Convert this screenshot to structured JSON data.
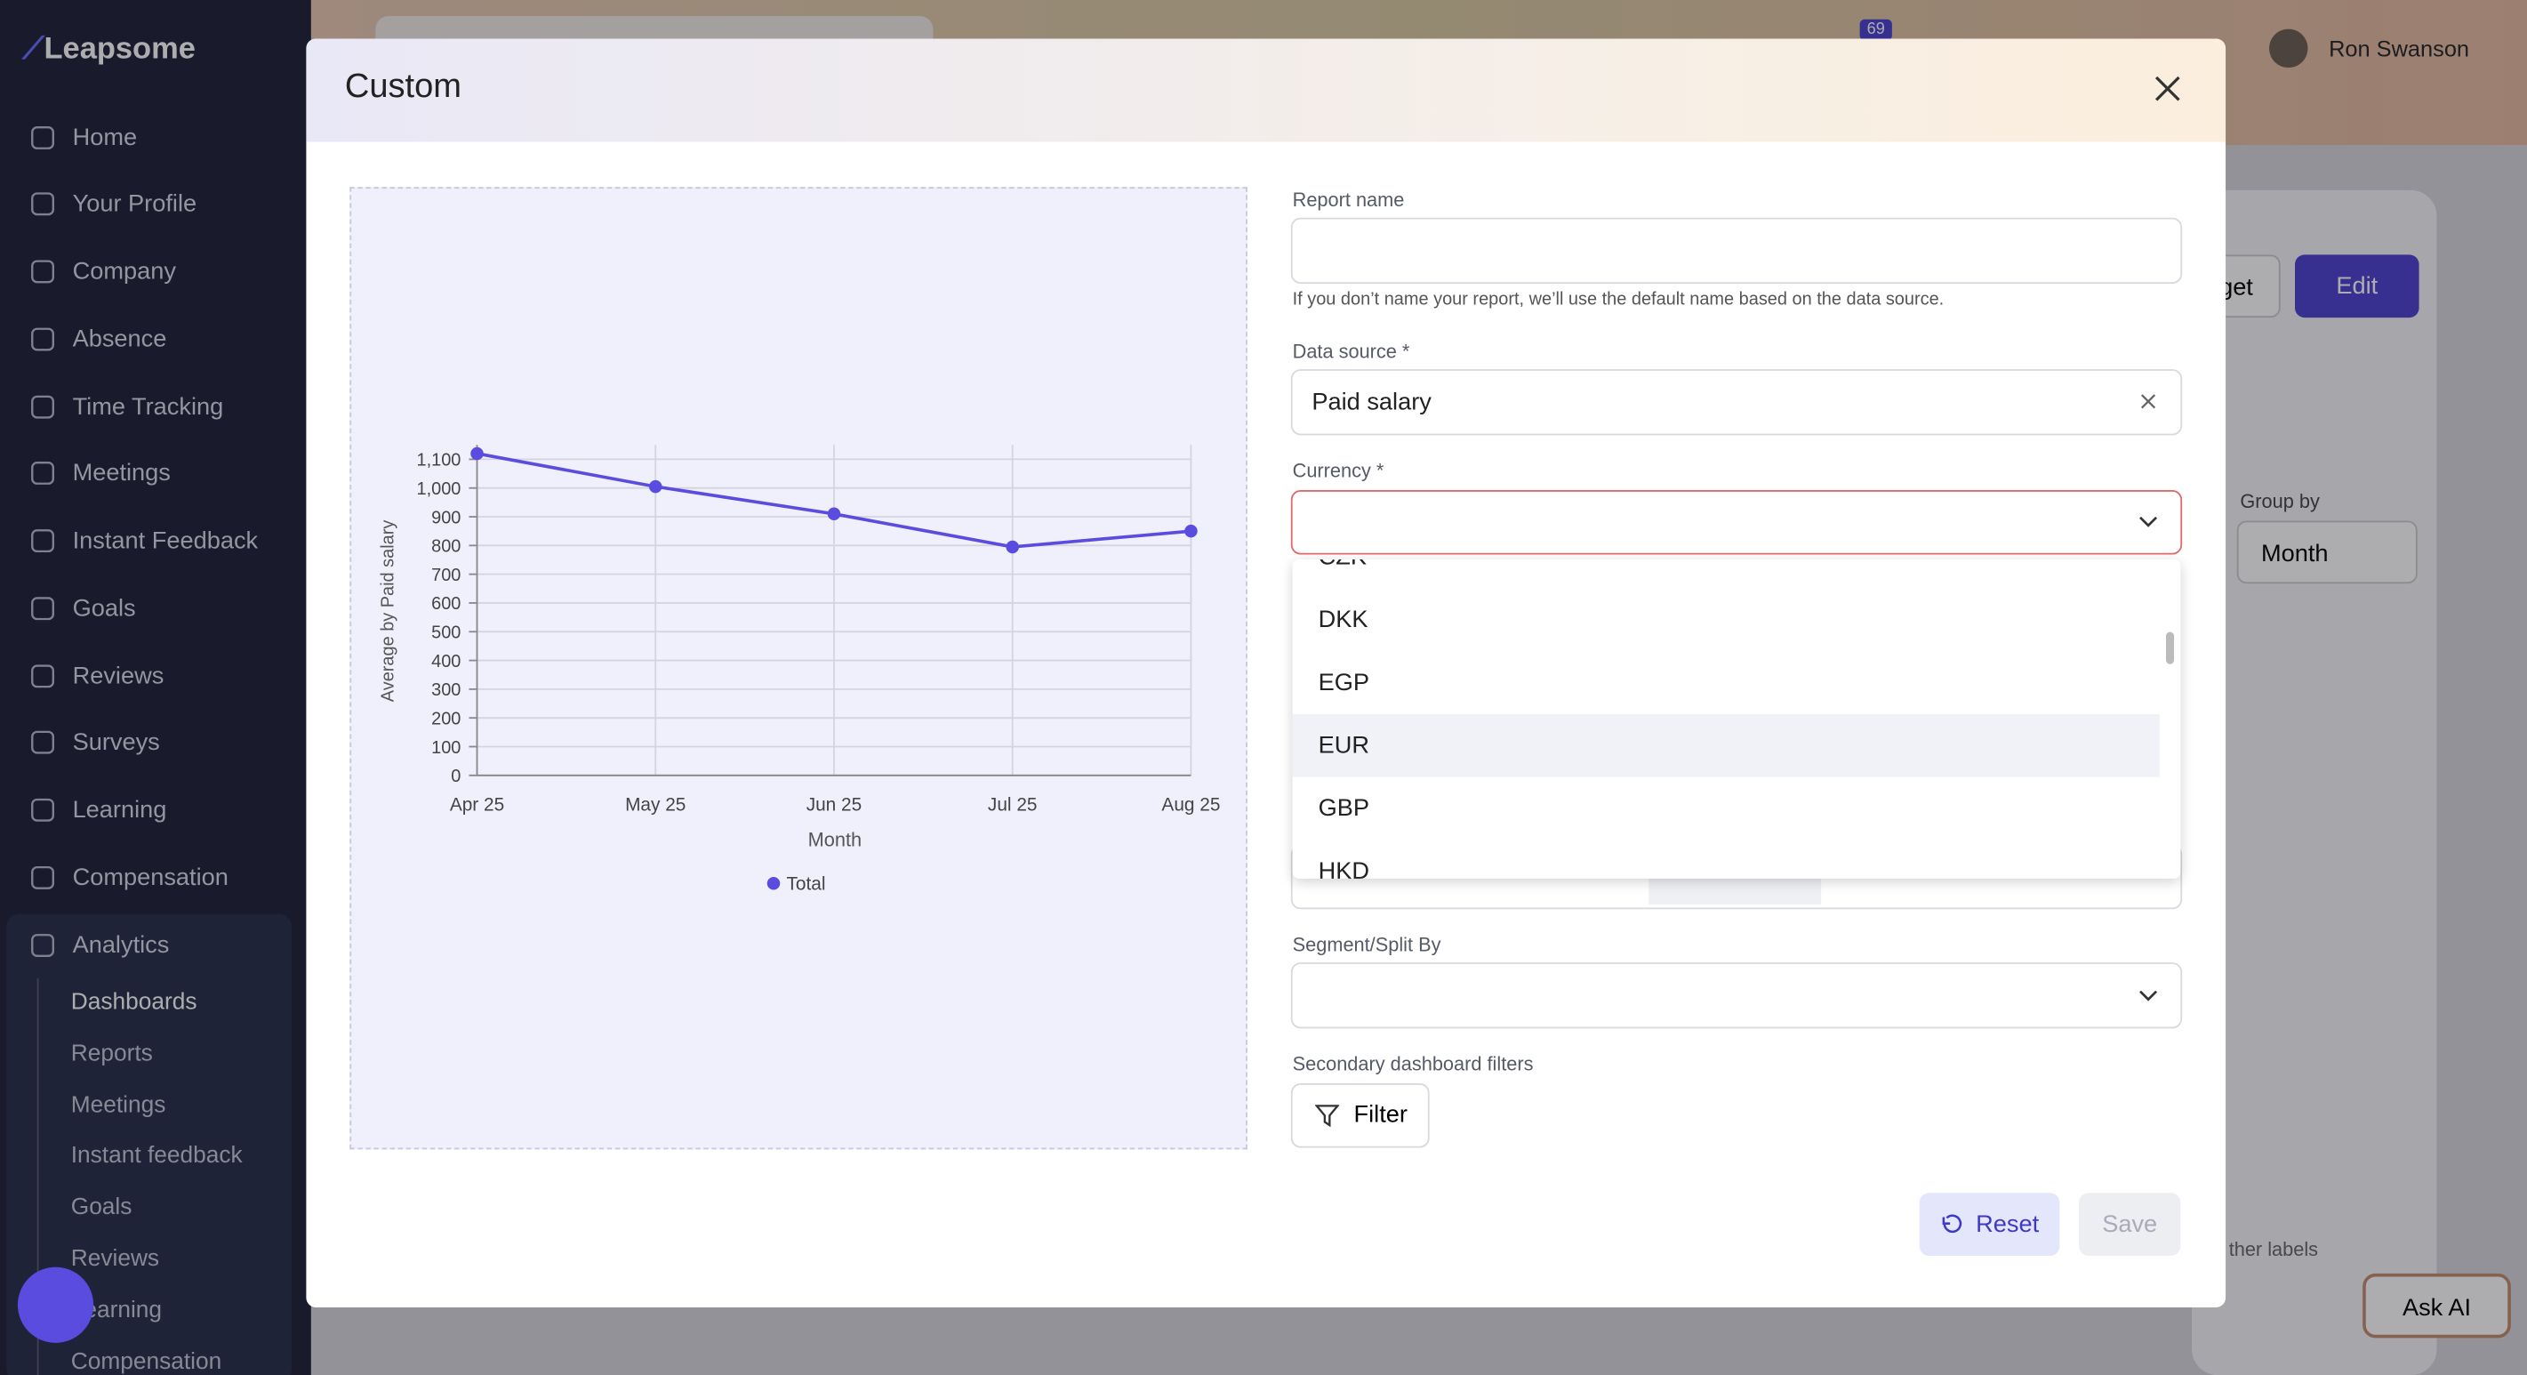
{
  "app": {
    "logo": "Leapsome",
    "user": "Ron Swanson",
    "badge": "69"
  },
  "nav": [
    "Home",
    "Your Profile",
    "Company",
    "Absence",
    "Time Tracking",
    "Meetings",
    "Instant Feedback",
    "Goals",
    "Reviews",
    "Surveys",
    "Learning",
    "Compensation"
  ],
  "analytics": {
    "label": "Analytics",
    "items": [
      "Dashboards",
      "Reports",
      "Meetings",
      "Instant feedback",
      "Goals",
      "Reviews",
      "Learning",
      "Compensation"
    ]
  },
  "background": {
    "target_partial": "get",
    "edit": "Edit",
    "group_by_label": "Group by",
    "group_by_value": "Month",
    "labels_partial": "ther labels",
    "ask_ai": "Ask AI"
  },
  "modal": {
    "title": "Custom",
    "report_name_label": "Report name",
    "report_name_help": "If you don’t name your report, we’ll use the default name based on the data source.",
    "data_source_label": "Data source *",
    "data_source_value": "Paid salary",
    "currency_label": "Currency *",
    "currency_options": [
      "CZK",
      "DKK",
      "EGP",
      "EUR",
      "GBP",
      "HKD"
    ],
    "segment_label": "Segment/Split By",
    "filters_label": "Secondary dashboard filters",
    "filter_button": "Filter",
    "reset": "Reset",
    "save": "Save"
  },
  "chart_data": {
    "type": "line",
    "y_label": "Average by Paid salary",
    "x_label": "Month",
    "categories": [
      "Apr 25",
      "May 25",
      "Jun 25",
      "Jul 25",
      "Aug 25"
    ],
    "series": [
      {
        "name": "Total",
        "color": "#5b4ce0",
        "values": [
          1120,
          1005,
          910,
          795,
          850
        ]
      }
    ],
    "ylim": [
      0,
      1150
    ],
    "yticks": [
      0,
      100,
      200,
      300,
      400,
      500,
      600,
      700,
      800,
      900,
      {
        "value": 1000,
        "label": "1,000"
      },
      {
        "value": 1100,
        "label": "1,100"
      }
    ],
    "grid": true,
    "legend": "bottom"
  }
}
